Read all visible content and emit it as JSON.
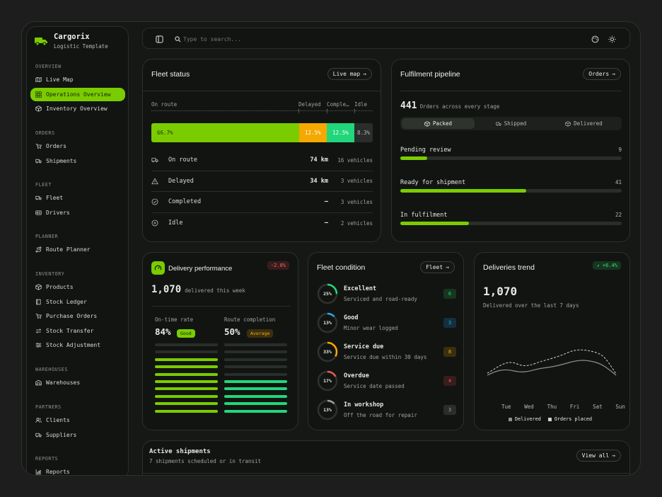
{
  "brand": {
    "name": "Cargorix",
    "subtitle": "Logistic Template",
    "accent": "#7acc00"
  },
  "sidebar": {
    "sections": [
      {
        "label": "OVERVIEW",
        "items": [
          {
            "label": "Live Map",
            "icon": "map-icon"
          },
          {
            "label": "Operations Overview",
            "icon": "grid-icon",
            "active": true
          },
          {
            "label": "Inventory Overview",
            "icon": "box-icon"
          }
        ]
      },
      {
        "label": "ORDERS",
        "items": [
          {
            "label": "Orders",
            "icon": "cart-icon"
          },
          {
            "label": "Shipments",
            "icon": "truck-icon"
          }
        ]
      },
      {
        "label": "FLEET",
        "items": [
          {
            "label": "Fleet",
            "icon": "truck-icon"
          },
          {
            "label": "Drivers",
            "icon": "id-card-icon"
          }
        ]
      },
      {
        "label": "PLANNER",
        "items": [
          {
            "label": "Route Planner",
            "icon": "route-icon"
          }
        ]
      },
      {
        "label": "INVENTORY",
        "items": [
          {
            "label": "Products",
            "icon": "box-icon"
          },
          {
            "label": "Stock Ledger",
            "icon": "book-icon"
          },
          {
            "label": "Purchase Orders",
            "icon": "cart-icon"
          },
          {
            "label": "Stock Transfer",
            "icon": "transfer-icon"
          },
          {
            "label": "Stock Adjustment",
            "icon": "sliders-icon"
          }
        ]
      },
      {
        "label": "WAREHOUSES",
        "items": [
          {
            "label": "Warehouses",
            "icon": "warehouse-icon"
          }
        ]
      },
      {
        "label": "PARTNERS",
        "items": [
          {
            "label": "Clients",
            "icon": "users-icon"
          },
          {
            "label": "Suppliers",
            "icon": "truck-icon"
          }
        ]
      },
      {
        "label": "REPORTS",
        "items": [
          {
            "label": "Reports",
            "icon": "chart-icon"
          }
        ]
      }
    ]
  },
  "topbar": {
    "search_placeholder": "Type to search...",
    "icons": [
      "sidebar-toggle-icon",
      "search-icon",
      "palette-icon",
      "sun-icon"
    ]
  },
  "fleet_status": {
    "title": "Fleet status",
    "button": "Live map",
    "segment_labels": [
      "On route",
      "Delayed",
      "Comple…",
      "Idle"
    ],
    "segments": [
      {
        "label": "66.7%",
        "value": 66.7,
        "color": "#7acc00"
      },
      {
        "label": "12.5%",
        "value": 12.5,
        "color": "#f5a800"
      },
      {
        "label": "12.5%",
        "value": 12.5,
        "color": "#22d67a"
      },
      {
        "label": "8.3%",
        "value": 8.3,
        "color": "#2a2e2a"
      }
    ],
    "rows": [
      {
        "label": "On route",
        "value": "74 km",
        "count": "16 vehicles",
        "icon": "truck-icon"
      },
      {
        "label": "Delayed",
        "value": "34 km",
        "count": "3 vehicles",
        "icon": "warning-icon"
      },
      {
        "label": "Completed",
        "value": "—",
        "count": "3 vehicles",
        "icon": "check-circle-icon"
      },
      {
        "label": "Idle",
        "value": "—",
        "count": "2 vehicles",
        "icon": "pause-circle-icon"
      }
    ]
  },
  "pipeline": {
    "title": "Fulfilment pipeline",
    "button": "Orders",
    "total": "441",
    "total_label": "Orders across every stage",
    "tabs": [
      {
        "label": "Packed",
        "active": true
      },
      {
        "label": "Shipped"
      },
      {
        "label": "Delivered"
      }
    ],
    "stages": [
      {
        "label": "Pending review",
        "value": "9",
        "fraction": 0.12
      },
      {
        "label": "Ready for shipment",
        "value": "41",
        "fraction": 0.57
      },
      {
        "label": "In fulfilment",
        "value": "22",
        "fraction": 0.31
      }
    ]
  },
  "delivery": {
    "title": "Delivery performance",
    "delta": "-2.8%",
    "count": "1,070",
    "count_label": "delivered this week",
    "ontime_label": "On-time rate",
    "ontime_value": "84%",
    "ontime_badge": "Good",
    "route_label": "Route completion",
    "route_value": "50%",
    "route_badge": "Average"
  },
  "fleet_condition": {
    "title": "Fleet condition",
    "button": "Fleet",
    "items": [
      {
        "name": "Excellent",
        "desc": "Serviced and road-ready",
        "pct": "25%",
        "frac": 0.25,
        "count": "6",
        "color": "#22d67a"
      },
      {
        "name": "Good",
        "desc": "Minor wear logged",
        "pct": "13%",
        "frac": 0.13,
        "count": "3",
        "color": "#2aa8e8"
      },
      {
        "name": "Service due",
        "desc": "Service due within 30 days",
        "pct": "33%",
        "frac": 0.33,
        "count": "8",
        "color": "#f5a800"
      },
      {
        "name": "Overdue",
        "desc": "Service date passed",
        "pct": "17%",
        "frac": 0.17,
        "count": "4",
        "color": "#e85a5a"
      },
      {
        "name": "In workshop",
        "desc": "Off the road for repair",
        "pct": "13%",
        "frac": 0.13,
        "count": "3",
        "color": "#9ea39e"
      }
    ]
  },
  "trend": {
    "title": "Deliveries trend",
    "delta": "+6.4%",
    "value": "1,070",
    "subtitle": "Delivered over the last 7 days",
    "days": [
      "Tue",
      "Wed",
      "Thu",
      "Fri",
      "Sat",
      "Sun"
    ],
    "legend": [
      "Delivered",
      "Orders placed"
    ]
  },
  "shipments": {
    "title": "Active shipments",
    "subtitle": "7 shipments scheduled or in transit",
    "button": "View all"
  }
}
